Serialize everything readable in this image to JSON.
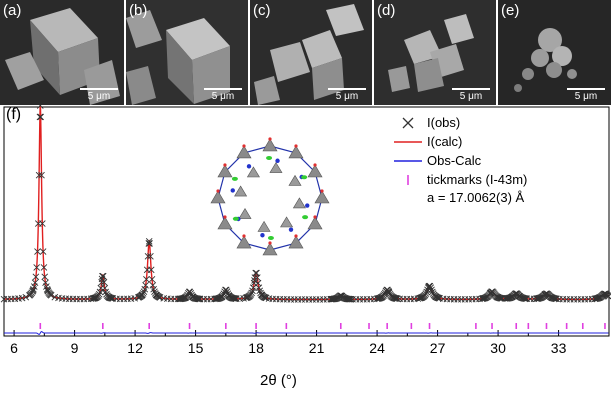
{
  "sem_panels": [
    {
      "label": "(a)",
      "scale": "5 μm"
    },
    {
      "label": "(b)",
      "scale": "5 μm"
    },
    {
      "label": "(c)",
      "scale": "5 μm"
    },
    {
      "label": "(d)",
      "scale": "5 μm"
    },
    {
      "label": "(e)",
      "scale": "5 μm"
    }
  ],
  "chart_data": {
    "type": "line",
    "panel_label": "(f)",
    "xlabel": "2θ (°)",
    "ylabel": "",
    "xlim": [
      5.5,
      35.5
    ],
    "xticks": [
      6,
      9,
      12,
      15,
      18,
      21,
      24,
      27,
      30,
      33
    ],
    "baseline_intensity": 0.1,
    "series": [
      {
        "name": "I(obs)",
        "style": "x-markers",
        "color": "#333333"
      },
      {
        "name": "I(calc)",
        "style": "line",
        "color": "#e02020"
      },
      {
        "name": "Obs-Calc",
        "style": "line",
        "color": "#2020dd"
      },
      {
        "name": "tickmarks (I-43m)",
        "style": "ticks",
        "color": "#e040e0"
      }
    ],
    "peaks": [
      {
        "x": 7.3,
        "y": 1.0
      },
      {
        "x": 10.4,
        "y": 0.125
      },
      {
        "x": 12.7,
        "y": 0.3
      },
      {
        "x": 14.7,
        "y": 0.04
      },
      {
        "x": 16.5,
        "y": 0.05
      },
      {
        "x": 18.0,
        "y": 0.14
      },
      {
        "x": 22.2,
        "y": 0.02
      },
      {
        "x": 24.5,
        "y": 0.05
      },
      {
        "x": 26.6,
        "y": 0.07
      },
      {
        "x": 29.7,
        "y": 0.04
      },
      {
        "x": 30.9,
        "y": 0.03
      },
      {
        "x": 32.4,
        "y": 0.03
      },
      {
        "x": 35.3,
        "y": 0.03
      }
    ],
    "tickmarks": [
      7.3,
      10.4,
      12.7,
      14.7,
      16.5,
      18.0,
      19.5,
      22.2,
      23.6,
      24.5,
      25.7,
      26.6,
      28.9,
      29.7,
      30.9,
      31.5,
      32.4,
      33.4,
      34.2,
      35.3
    ],
    "lattice_note": "a = 17.0062(3) Å"
  },
  "colors": {
    "obs": "#333333",
    "calc": "#e02020",
    "diff": "#2020dd",
    "ticks": "#e040e0"
  }
}
